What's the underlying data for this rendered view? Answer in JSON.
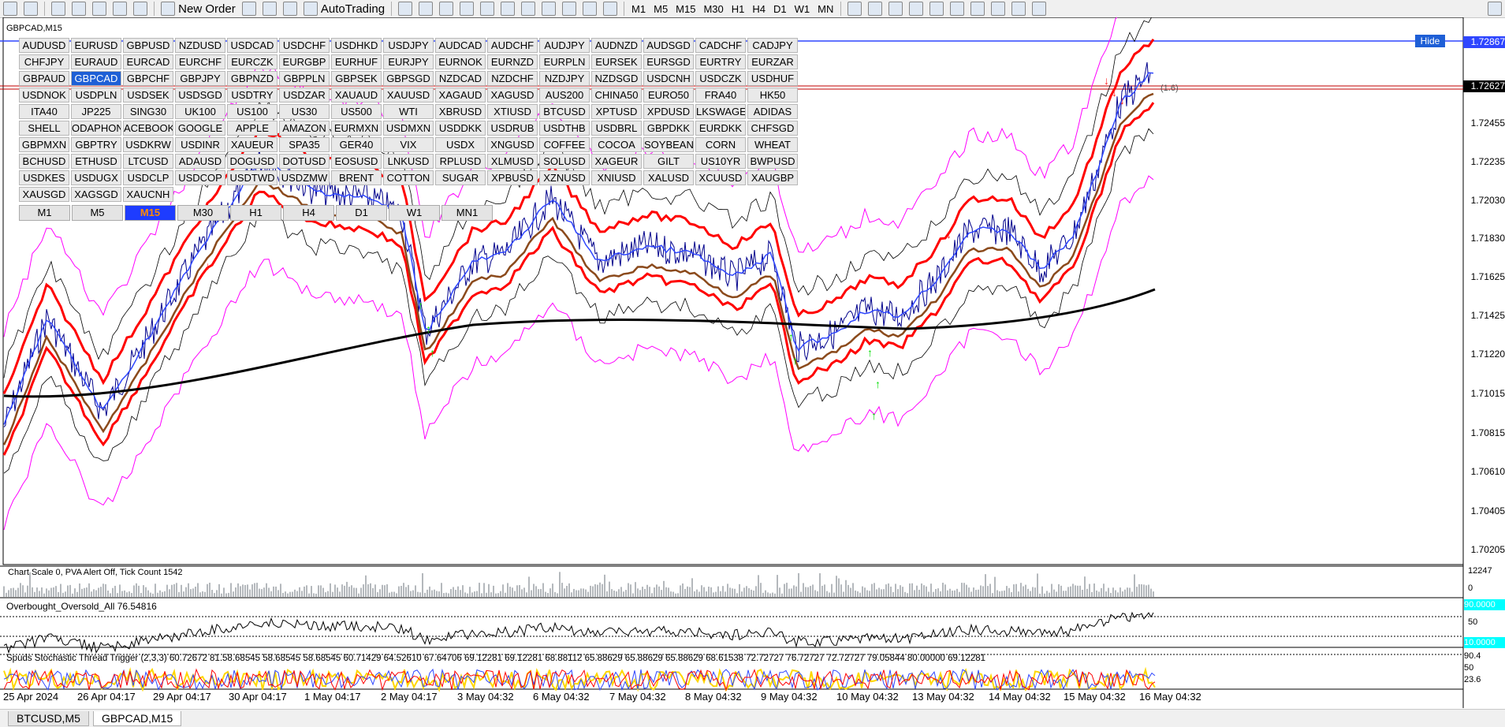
{
  "toolbar": {
    "new_order": "New Order",
    "auto_trading": "AutoTrading",
    "timeframes": [
      "M1",
      "M5",
      "M15",
      "M30",
      "H1",
      "H4",
      "D1",
      "W1",
      "MN"
    ]
  },
  "chart": {
    "title": "GBPCAD,M15",
    "hide": "Hide",
    "bid_label": "(1.6)"
  },
  "symbols": [
    "AUDUSD",
    "EURUSD",
    "GBPUSD",
    "NZDUSD",
    "USDCAD",
    "USDCHF",
    "USDHKD",
    "USDJPY",
    "AUDCAD",
    "AUDCHF",
    "AUDJPY",
    "AUDNZD",
    "AUDSGD",
    "CADCHF",
    "CADJPY",
    "CHFJPY",
    "EURAUD",
    "EURCAD",
    "EURCHF",
    "EURCZK",
    "EURGBP",
    "EURHUF",
    "EURJPY",
    "EURNOK",
    "EURNZD",
    "EURPLN",
    "EURSEK",
    "EURSGD",
    "EURTRY",
    "EURZAR",
    "GBPAUD",
    "GBPCAD",
    "GBPCHF",
    "GBPJPY",
    "GBPNZD",
    "GBPPLN",
    "GBPSEK",
    "GBPSGD",
    "NZDCAD",
    "NZDCHF",
    "NZDJPY",
    "NZDSGD",
    "USDCNH",
    "USDCZK",
    "USDHUF",
    "USDNOK",
    "USDPLN",
    "USDSEK",
    "USDSGD",
    "USDTRY",
    "USDZAR",
    "XAUAUD",
    "XAUUSD",
    "XAGAUD",
    "XAGUSD",
    "AUS200",
    "CHINA50",
    "EURO50",
    "FRA40",
    "HK50",
    "ITA40",
    "JP225",
    "SING30",
    "UK100",
    "US100",
    "US30",
    "US500",
    "WTI",
    "XBRUSD",
    "XTIUSD",
    "BTCUSD",
    "XPTUSD",
    "XPDUSD",
    "LKSWAGE",
    "ADIDAS",
    "SHELL",
    "ODAPHONE",
    "ACEBOOK",
    "GOOGLE",
    "APPLE",
    "AMAZON",
    "EURMXN",
    "USDMXN",
    "USDDKK",
    "USDRUB",
    "USDTHB",
    "USDBRL",
    "GBPDKK",
    "EURDKK",
    "CHFSGD",
    "GBPMXN",
    "GBPTRY",
    "USDKRW",
    "USDINR",
    "XAUEUR",
    "SPA35",
    "GER40",
    "VIX",
    "USDX",
    "XNGUSD",
    "COFFEE",
    "COCOA",
    "SOYBEANS",
    "CORN",
    "WHEAT",
    "BCHUSD",
    "ETHUSD",
    "LTCUSD",
    "ADAUSD",
    "DOGUSD",
    "DOTUSD",
    "EOSUSD",
    "LNKUSD",
    "RPLUSD",
    "XLMUSD",
    "SOLUSD",
    "XAGEUR",
    "GILT",
    "US10YR",
    "BWPUSD",
    "USDKES",
    "USDUGX",
    "USDCLP",
    "USDCOP",
    "USDTWD",
    "USDZMW",
    "BRENT",
    "COTTON",
    "SUGAR",
    "XPBUSD",
    "XZNUSD",
    "XNIUSD",
    "XALUSD",
    "XCUUSD",
    "XAUGBP",
    "XAUSGD",
    "XAGSGD",
    "XAUCNH"
  ],
  "selected_symbol": "GBPCAD",
  "tf_buttons": [
    "M1",
    "M5",
    "M15",
    "M30",
    "H1",
    "H4",
    "D1",
    "W1",
    "MN1"
  ],
  "selected_tf": "M15",
  "price_axis": [
    "1.72867",
    "1.72627",
    "1.72455",
    "1.72235",
    "1.72030",
    "1.71830",
    "1.71625",
    "1.71425",
    "1.71220",
    "1.71015",
    "1.70815",
    "1.70610",
    "1.70405",
    "1.70205"
  ],
  "vol_panel": {
    "label": "Chart Scale  0,   PVA Alert Off,   Tick Count  1542",
    "max": "12247",
    "min": "0"
  },
  "osc_panel": {
    "label": "Overbought_Oversold_All 76.54816",
    "top": "90.0000",
    "mid": "50",
    "bot": "10.0000"
  },
  "stoch_panel": {
    "label": "Spuds Stochastic Thread Trigger (2,3,3) 60.72672 81.58.68545 58.68545 58.68545 60.71429 64.52610 67.64706 69.12281 69.12281 68.88112 65.88629 65.88629 65.88629 68.61538 72.72727 76.72727 72.72727 79.05844 80.00000 69.12281",
    "ticks": [
      "90.4",
      "50",
      "23.6"
    ]
  },
  "x_axis": [
    "25 Apr 2024",
    "26 Apr 04:17",
    "29 Apr 04:17",
    "30 Apr 04:17",
    "1 May 04:17",
    "2 May 04:17",
    "3 May 04:32",
    "6 May 04:32",
    "7 May 04:32",
    "8 May 04:32",
    "9 May 04:32",
    "10 May 04:32",
    "13 May 04:32",
    "14 May 04:32",
    "15 May 04:32",
    "16 May 04:32"
  ],
  "tabs": [
    "BTCUSD,M5",
    "GBPCAD,M15"
  ],
  "active_tab": "GBPCAD,M15",
  "colors": {
    "selected_symbol": "#1e5fd6",
    "line_blue": "#2e46ff",
    "hline": "#c00000",
    "bb_magenta": "#ff00ff",
    "ma_red": "#ff0000",
    "ma_brown": "#8b4a1c",
    "sma_black": "#000000",
    "arrow_up": "#00dd00",
    "arrow_down": "#ff2020"
  }
}
